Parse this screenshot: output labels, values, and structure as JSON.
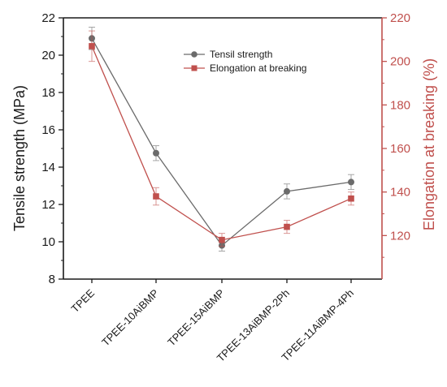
{
  "chart_data": {
    "type": "line",
    "categories": [
      "TPEE",
      "TPEE-10AiBMP",
      "TPEE-15AiBMP",
      "TPEE-13AiBMP-2Ph",
      "TPEE-11AiBMP-4Ph"
    ],
    "series": [
      {
        "name": "Tensil strength",
        "axis": "left",
        "color": "#6b6b6b",
        "marker": "circle",
        "values": [
          20.9,
          14.75,
          9.8,
          12.7,
          13.2
        ],
        "errors": [
          0.6,
          0.4,
          0.3,
          0.4,
          0.4
        ]
      },
      {
        "name": "Elongation at breaking",
        "axis": "right",
        "color": "#c0504d",
        "marker": "square",
        "values": [
          207,
          138,
          118,
          124,
          137
        ],
        "errors": [
          7,
          4,
          3,
          3,
          3
        ]
      }
    ],
    "ylabel": "Tensile strength (MPa)",
    "ylabel_right": "Elongation at breaking (%)",
    "ylim": [
      8,
      22
    ],
    "ylim_right": [
      100,
      220
    ],
    "yticks": [
      "8",
      "10",
      "12",
      "14",
      "16",
      "18",
      "20",
      "22"
    ],
    "yticks_right": [
      "120",
      "140",
      "160",
      "180",
      "200",
      "220"
    ],
    "legend_position": "top-right",
    "grid": false
  },
  "colors": {
    "left_axis": "#1a1a1a",
    "right_axis": "#c0504d"
  }
}
